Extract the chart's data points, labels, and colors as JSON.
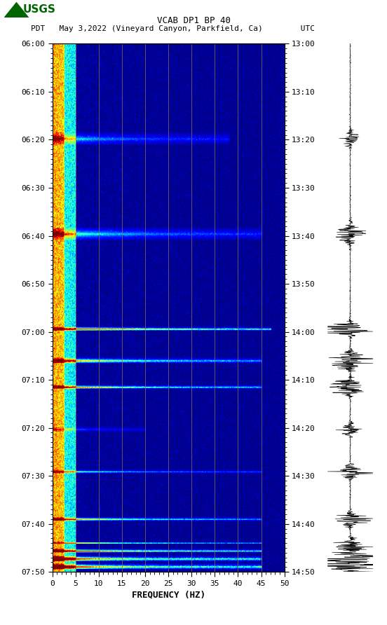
{
  "title_line1": "VCAB DP1 BP 40",
  "title_line2": "PDT   May 3,2022 (Vineyard Canyon, Parkfield, Ca)        UTC",
  "xlabel": "FREQUENCY (HZ)",
  "xmin": 0,
  "xmax": 50,
  "xticks": [
    0,
    5,
    10,
    15,
    20,
    25,
    30,
    35,
    40,
    45,
    50
  ],
  "left_ytick_labels": [
    "06:00",
    "06:10",
    "06:20",
    "06:30",
    "06:40",
    "06:50",
    "07:00",
    "07:10",
    "07:20",
    "07:30",
    "07:40",
    "07:50"
  ],
  "right_ytick_labels": [
    "13:00",
    "13:10",
    "13:20",
    "13:30",
    "13:40",
    "13:50",
    "14:00",
    "14:10",
    "14:20",
    "14:30",
    "14:40",
    "14:50"
  ],
  "background_color": "#ffffff",
  "spectrogram_cmap": "jet",
  "vertical_line_color": "#8B7355",
  "vertical_line_positions": [
    5,
    10,
    15,
    20,
    25,
    30,
    35,
    40,
    45
  ],
  "usgs_logo_color": "#006400",
  "seed": 123,
  "fig_width": 5.52,
  "fig_height": 8.92,
  "n_time": 600,
  "n_freq": 500
}
